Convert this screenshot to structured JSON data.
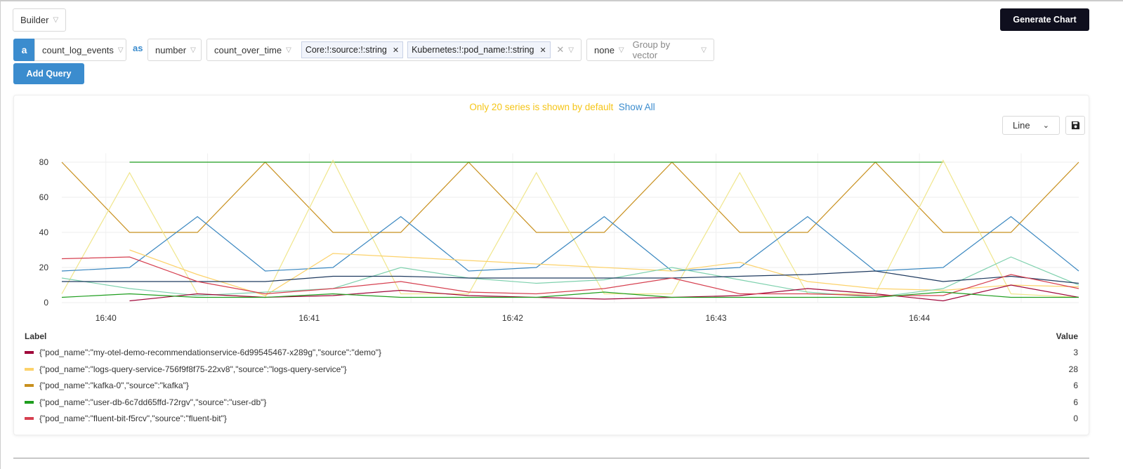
{
  "mode_select": "Builder",
  "generate_button": "Generate Chart",
  "query": {
    "letter": "a",
    "metric": "count_log_events",
    "as_label": "as",
    "type": "number",
    "function": "count_over_time",
    "tags": [
      "Core:!:source:!:string",
      "Kubernetes:!:pod_name:!:string"
    ],
    "agg": "none",
    "group_placeholder": "Group by vector"
  },
  "add_query_button": "Add Query",
  "notice": {
    "text": "Only 20 series is shown by default",
    "link": "Show All"
  },
  "chart_type_select": "Line",
  "colors": {
    "accent": "#3b8cce",
    "notice": "#f5c518",
    "dark_button": "#0f0f1e"
  },
  "chart_data": {
    "type": "line",
    "x": [
      "16:39:47",
      "16:40:07",
      "16:40:27",
      "16:40:47",
      "16:41:07",
      "16:41:27",
      "16:41:47",
      "16:42:07",
      "16:42:27",
      "16:42:47",
      "16:43:07",
      "16:43:27",
      "16:43:47",
      "16:44:07",
      "16:44:27",
      "16:44:47"
    ],
    "x_ticks": [
      "16:40",
      "16:41",
      "16:42",
      "16:43",
      "16:44"
    ],
    "y_ticks": [
      0,
      20,
      40,
      60,
      80
    ],
    "ylim": [
      0,
      85
    ],
    "grid": true,
    "series": [
      {
        "color": "#c8901e",
        "values": [
          80,
          40,
          40,
          80,
          40,
          40,
          80,
          40,
          40,
          80,
          40,
          40,
          80,
          40,
          40,
          80
        ]
      },
      {
        "color": "#1f9e1f",
        "values": [
          null,
          80,
          80,
          80,
          80,
          80,
          80,
          80,
          80,
          80,
          80,
          80,
          80,
          80,
          null,
          null
        ]
      },
      {
        "color": "#f0e68c",
        "values": [
          5,
          74,
          5,
          3,
          81,
          5,
          5,
          74,
          5,
          5,
          74,
          5,
          5,
          81,
          5,
          3
        ]
      },
      {
        "color": "#3a87c0",
        "values": [
          18,
          20,
          49,
          18,
          20,
          49,
          18,
          20,
          49,
          18,
          20,
          49,
          18,
          20,
          49,
          18
        ]
      },
      {
        "color": "#fcd26b",
        "values": [
          null,
          30,
          16,
          4,
          28,
          26,
          24,
          22,
          20,
          18,
          23,
          12,
          8,
          7,
          10,
          9
        ]
      },
      {
        "color": "#7fd1ae",
        "values": [
          14,
          8,
          4,
          6,
          8,
          20,
          14,
          11,
          13,
          20,
          13,
          6,
          3,
          8,
          26,
          10
        ]
      },
      {
        "color": "#1f3a5f",
        "values": [
          12,
          12,
          12,
          12,
          15,
          15,
          14,
          14,
          14,
          14,
          15,
          16,
          18,
          12,
          15,
          11
        ]
      },
      {
        "color": "#a0073a",
        "values": [
          null,
          1,
          5,
          3,
          4,
          7,
          4,
          3,
          2,
          3,
          4,
          8,
          5,
          1,
          10,
          3
        ]
      },
      {
        "color": "#d64050",
        "values": [
          25,
          26,
          12,
          5,
          8,
          12,
          6,
          5,
          8,
          14,
          5,
          5,
          4,
          4,
          16,
          8
        ]
      },
      {
        "color": "#1f9e1f",
        "values": [
          3,
          5,
          3,
          3,
          5,
          3,
          3,
          3,
          6,
          3,
          3,
          3,
          3,
          6,
          3,
          3
        ]
      }
    ]
  },
  "legend": {
    "label_header": "Label",
    "value_header": "Value",
    "items": [
      {
        "label": "{\"pod_name\":\"my-otel-demo-recommendationservice-6d99545467-x289g\",\"source\":\"demo\"}",
        "value": "3",
        "color": "#a0073a"
      },
      {
        "label": "{\"pod_name\":\"logs-query-service-756f9f8f75-22xv8\",\"source\":\"logs-query-service\"}",
        "value": "28",
        "color": "#fcd26b"
      },
      {
        "label": "{\"pod_name\":\"kafka-0\",\"source\":\"kafka\"}",
        "value": "6",
        "color": "#c8901e"
      },
      {
        "label": "{\"pod_name\":\"user-db-6c7dd65ffd-72rgv\",\"source\":\"user-db\"}",
        "value": "6",
        "color": "#1f9e1f"
      },
      {
        "label": "{\"pod_name\":\"fluent-bit-f5rcv\",\"source\":\"fluent-bit\"}",
        "value": "0",
        "color": "#d64050"
      }
    ]
  }
}
